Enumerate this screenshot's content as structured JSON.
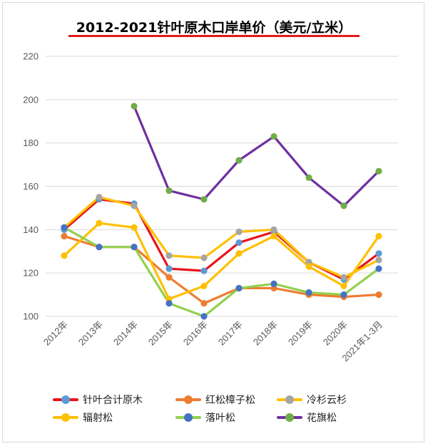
{
  "chart_data": {
    "type": "line",
    "title": "2012-2021针叶原木口岸单价（美元/立米）",
    "categories": [
      "2012年",
      "2013年",
      "2014年",
      "2015年",
      "2016年",
      "2017年",
      "2018年",
      "2019年",
      "2020年",
      "2021年1-3月"
    ],
    "ylim": [
      100,
      220
    ],
    "yticks": [
      100,
      120,
      140,
      160,
      180,
      200,
      220
    ],
    "grid": true,
    "legend_position": "bottom",
    "series": [
      {
        "name": "针叶合计原木",
        "line_color": "#e8141c",
        "marker_color": "#5b9bd5",
        "values": [
          140,
          154,
          152,
          122,
          121,
          134,
          139,
          125,
          117,
          129
        ]
      },
      {
        "name": "红松樟子松",
        "line_color": "#ed7d31",
        "marker_color": "#ed7d31",
        "values": [
          137,
          132,
          132,
          118,
          106,
          113,
          113,
          110,
          109,
          110
        ]
      },
      {
        "name": "冷杉云杉",
        "line_color": "#ffc000",
        "marker_color": "#a5a5a5",
        "values": [
          141,
          155,
          151,
          128,
          127,
          139,
          140,
          125,
          118,
          126
        ]
      },
      {
        "name": "辐射松",
        "line_color": "#ffc000",
        "marker_color": "#ffc000",
        "values": [
          128,
          143,
          141,
          108,
          114,
          129,
          137,
          123,
          114,
          137
        ]
      },
      {
        "name": "落叶松",
        "line_color": "#92d050",
        "marker_color": "#4472c4",
        "values": [
          141,
          132,
          132,
          106,
          100,
          113,
          115,
          111,
          110,
          122
        ]
      },
      {
        "name": "花旗松",
        "line_color": "#7030a0",
        "marker_color": "#70ad47",
        "values": [
          null,
          null,
          197,
          158,
          154,
          172,
          183,
          164,
          151,
          167
        ]
      }
    ]
  }
}
